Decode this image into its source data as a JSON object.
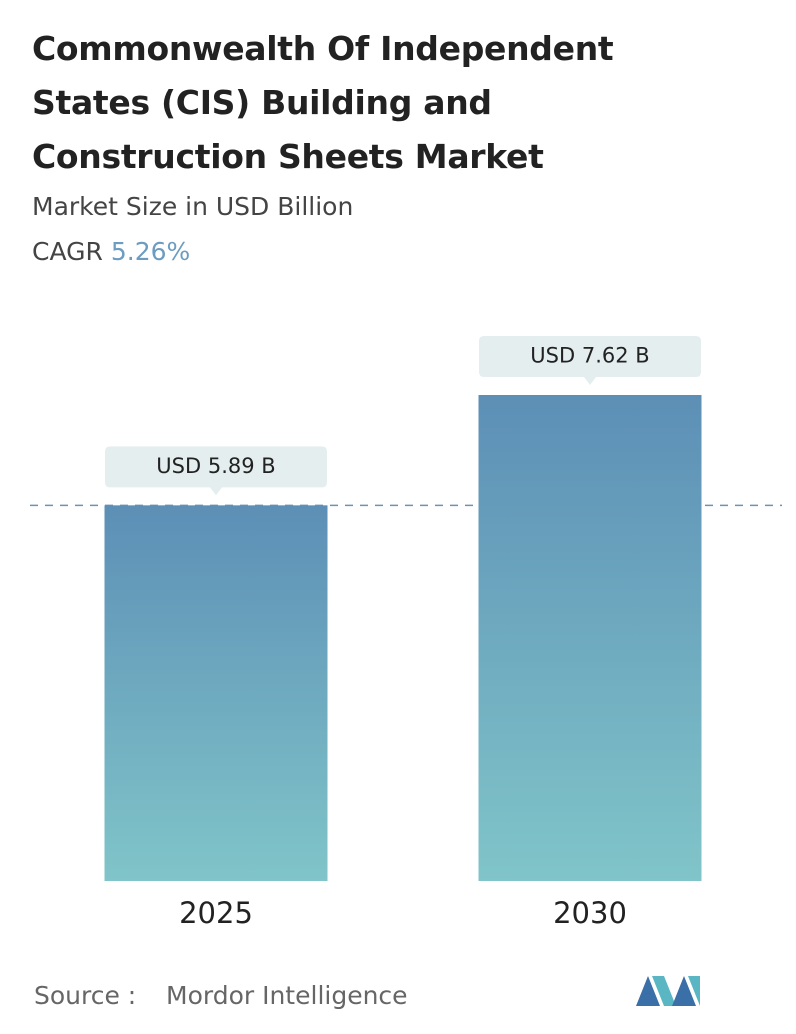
{
  "chart_data": {
    "type": "bar",
    "title": [
      "Commonwealth Of Independent",
      "States (CIS) Building and",
      "Construction Sheets Market"
    ],
    "subtitle": "Market Size in USD Billion",
    "cagr_label": "CAGR",
    "cagr_value": "5.26%",
    "categories": [
      "2025",
      "2030"
    ],
    "values": [
      5.89,
      7.62
    ],
    "value_labels": [
      "USD 5.89 B",
      "USD 7.62 B"
    ],
    "gradient": [
      "#5d8fb6",
      "#80c5c9"
    ],
    "source_label": "Source :",
    "source": "Mordor Intelligence"
  }
}
